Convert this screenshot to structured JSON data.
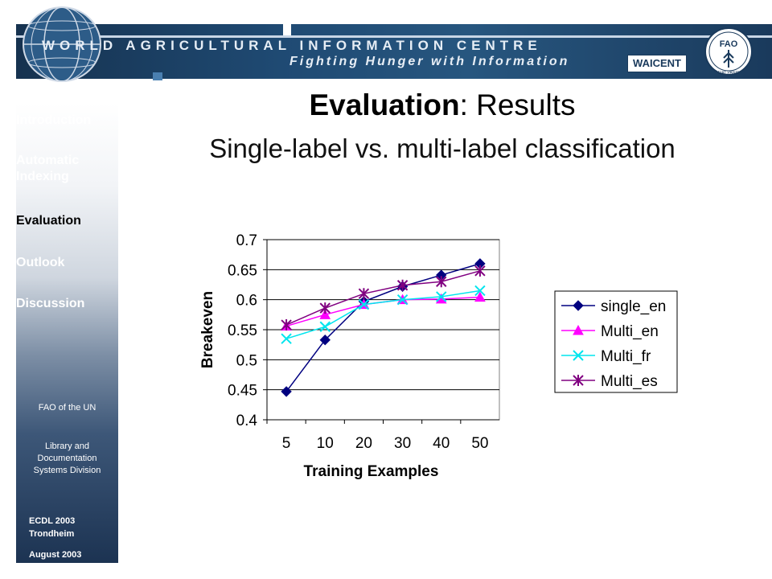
{
  "banner": {
    "title": "WORLD AGRICULTURAL INFORMATION CENTRE",
    "subtitle": "Fighting Hunger with Information",
    "waicent": "WAICENT",
    "fao_letters": "FAO",
    "fao_motto": "FIAT PANIS",
    "colors": {
      "dark": "#16324f",
      "mid": "#27567f"
    }
  },
  "sidebar": {
    "nav": [
      {
        "label": "Introduction",
        "color": "#ffffff"
      },
      {
        "label": "Automatic Indexing",
        "color": "#ffffff"
      },
      {
        "label": "Evaluation",
        "color": "#000000"
      },
      {
        "label": "Outlook",
        "color": "#ffffff"
      },
      {
        "label": "Discussion",
        "color": "#ffffff"
      }
    ],
    "org": "FAO of the UN",
    "division": "Library and Documentation Systems Division",
    "conference": "ECDL 2003",
    "city": "Trondheim",
    "date": "August 2003"
  },
  "slide": {
    "title_bold": "Evaluation",
    "title_rest": ": Results",
    "subtitle": "Single-label vs. multi-label classification"
  },
  "chart_data": {
    "type": "line",
    "xlabel": "Training Examples",
    "ylabel": "Breakeven",
    "categories": [
      "5",
      "10",
      "20",
      "30",
      "40",
      "50"
    ],
    "ylim": [
      0.4,
      0.7
    ],
    "yticks": [
      "0.4",
      "0.45",
      "0.5",
      "0.55",
      "0.6",
      "0.65",
      "0.7"
    ],
    "grid": "horizontal",
    "legend_position": "right",
    "series": [
      {
        "name": "single_en",
        "values": [
          0.447,
          0.533,
          0.597,
          0.622,
          0.641,
          0.66
        ],
        "color": "#000080",
        "marker": "diamond"
      },
      {
        "name": "Multi_en",
        "values": [
          0.556,
          0.575,
          0.592,
          0.6,
          0.601,
          0.604
        ],
        "color": "#ff00ff",
        "marker": "triangle"
      },
      {
        "name": "Multi_fr",
        "values": [
          0.535,
          0.555,
          0.592,
          0.6,
          0.605,
          0.615
        ],
        "color": "#00e5ee",
        "marker": "x"
      },
      {
        "name": "Multi_es",
        "values": [
          0.558,
          0.586,
          0.61,
          0.624,
          0.63,
          0.648
        ],
        "color": "#800080",
        "marker": "star"
      }
    ]
  }
}
